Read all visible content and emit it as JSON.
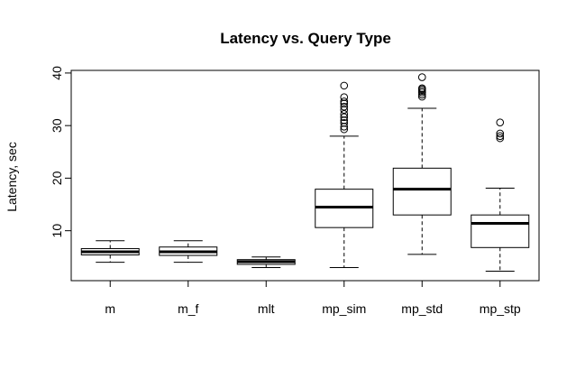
{
  "chart_data": {
    "type": "box",
    "title": "Latency vs. Query Type",
    "xlabel": "",
    "ylabel": "Latency, sec",
    "ylim": [
      0.5,
      40.5
    ],
    "yticks": [
      10,
      20,
      30,
      40
    ],
    "categories": [
      "m",
      "m_f",
      "mlt",
      "mp_sim",
      "mp_std",
      "mp_stp"
    ],
    "boxes": [
      {
        "name": "m",
        "min": 4.0,
        "q1": 5.4,
        "median": 6.0,
        "q3": 6.6,
        "max": 8.1,
        "outliers": []
      },
      {
        "name": "m_f",
        "min": 4.0,
        "q1": 5.3,
        "median": 6.0,
        "q3": 6.9,
        "max": 8.1,
        "outliers": []
      },
      {
        "name": "mlt",
        "min": 3.0,
        "q1": 3.6,
        "median": 4.1,
        "q3": 4.5,
        "max": 5.0,
        "outliers": []
      },
      {
        "name": "mp_sim",
        "min": 3.0,
        "q1": 10.6,
        "median": 14.5,
        "q3": 17.9,
        "max": 28.0,
        "outliers": [
          29.3,
          29.8,
          30.5,
          31.0,
          31.6,
          32.2,
          33.0,
          33.6,
          34.2,
          34.6,
          35.4,
          37.6
        ]
      },
      {
        "name": "mp_std",
        "min": 5.5,
        "q1": 13.0,
        "median": 17.9,
        "q3": 21.9,
        "max": 33.3,
        "outliers": [
          35.5,
          35.9,
          36.3,
          36.6,
          36.9,
          37.1,
          39.2
        ]
      },
      {
        "name": "mp_stp",
        "min": 2.3,
        "q1": 6.8,
        "median": 11.4,
        "q3": 13.0,
        "max": 18.1,
        "outliers": [
          27.6,
          28.0,
          28.5,
          30.6
        ]
      }
    ]
  }
}
